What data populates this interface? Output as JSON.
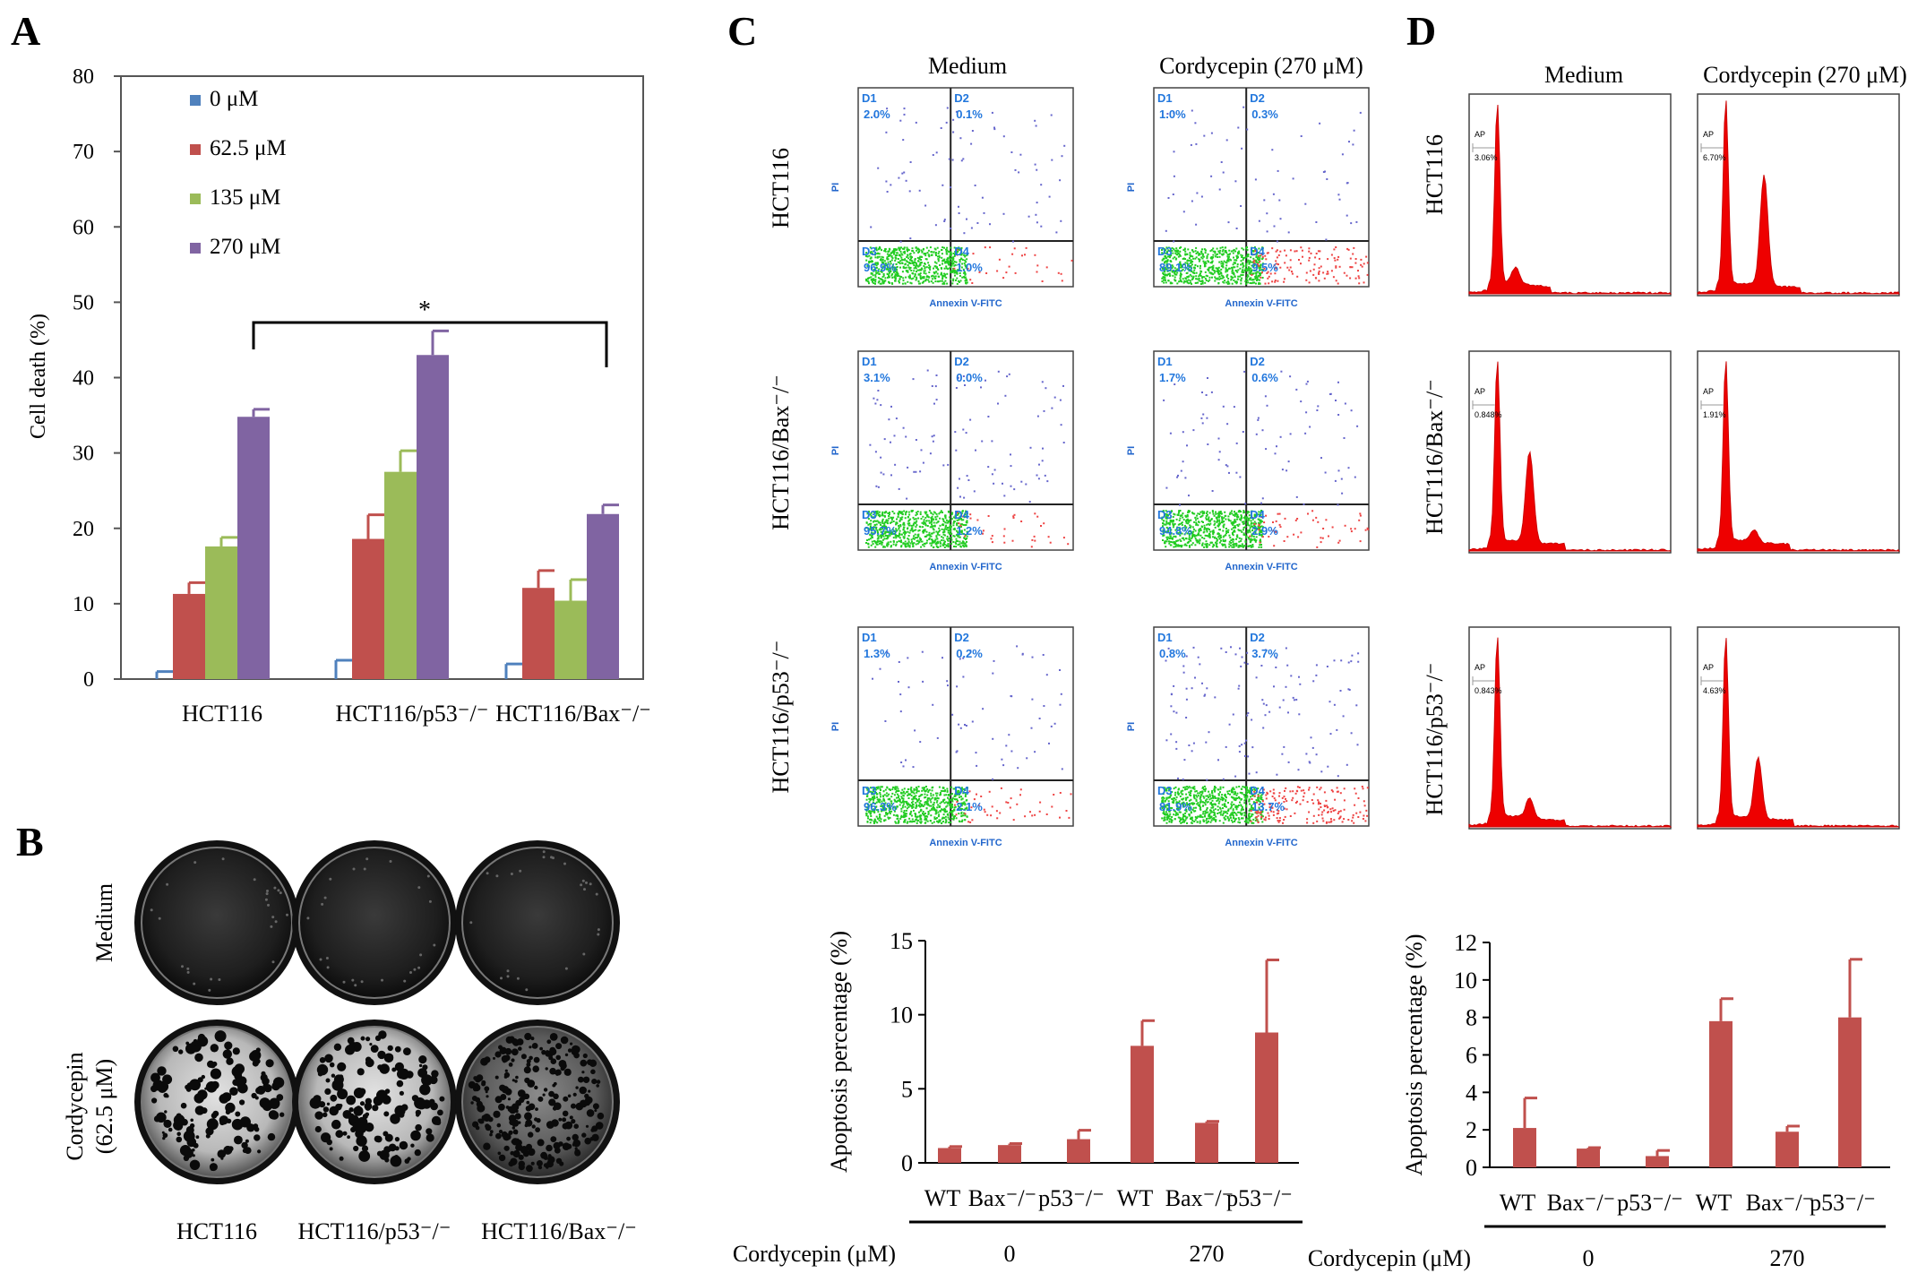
{
  "panels": {
    "A": "A",
    "B": "B",
    "C": "C",
    "D": "D"
  },
  "panel_a": {
    "ylabel": "Cell death (%)",
    "star": "*",
    "chart_data": {
      "type": "bar",
      "categories": [
        "HCT116",
        "HCT116/p53⁻/⁻",
        "HCT116/Bax⁻/⁻"
      ],
      "series": [
        {
          "name": "0 μM",
          "color": "#4f81bd",
          "values": [
            0,
            0,
            0
          ],
          "errors": [
            1,
            2.5,
            2
          ]
        },
        {
          "name": "62.5 μM",
          "color": "#c0504d",
          "values": [
            11.3,
            18.6,
            12.1
          ],
          "errors": [
            1.5,
            3.2,
            2.3
          ]
        },
        {
          "name": "135 μM",
          "color": "#9bbb59",
          "values": [
            17.6,
            27.5,
            10.4
          ],
          "errors": [
            1.2,
            2.8,
            2.8
          ]
        },
        {
          "name": "270 μM",
          "color": "#8064a2",
          "values": [
            34.8,
            43,
            21.9
          ],
          "errors": [
            1,
            3.2,
            1.2
          ]
        }
      ],
      "ylim": [
        0,
        80
      ],
      "yticks": [
        "0",
        "10",
        "20",
        "30",
        "40",
        "50",
        "60",
        "70",
        "80"
      ]
    }
  },
  "panel_b": {
    "row_labels": [
      "Medium",
      "Cordycepin",
      "(62.5 μM)"
    ],
    "col_labels": [
      "HCT116",
      "HCT116/p53⁻/⁻",
      "HCT116/Bax⁻/⁻"
    ]
  },
  "panel_c": {
    "col_headers": [
      "Medium",
      "Cordycepin (270 μM)"
    ],
    "row_labels": [
      "HCT116",
      "HCT116/Bax⁻/⁻",
      "HCT116/p53⁻/⁻"
    ],
    "xaxis_label": "Annexin V-FITC",
    "yaxis_label": "PI",
    "quadrant_names": [
      "D1",
      "D2",
      "D3",
      "D4"
    ],
    "plots": [
      {
        "D1": "2.0%",
        "D2": "0.1%",
        "D3": "96.9%",
        "D4": "1.0%"
      },
      {
        "D1": "1.0%",
        "D2": "0.3%",
        "D3": "89.1%",
        "D4": "9.5%"
      },
      {
        "D1": "3.1%",
        "D2": "0.0%",
        "D3": "95.7%",
        "D4": "1.2%"
      },
      {
        "D1": "1.7%",
        "D2": "0.6%",
        "D3": "94.8%",
        "D4": "2.9%"
      },
      {
        "D1": "1.3%",
        "D2": "0.2%",
        "D3": "96.3%",
        "D4": "2.1%"
      },
      {
        "D1": "0.8%",
        "D2": "3.7%",
        "D3": "81.9%",
        "D4": "13.7%"
      }
    ],
    "chart_data": {
      "type": "bar",
      "categories": [
        "WT",
        "Bax⁻/⁻",
        "p53⁻/⁻",
        "WT",
        "Bax⁻/⁻",
        "p53⁻/⁻"
      ],
      "values": [
        1.0,
        1.2,
        1.6,
        7.9,
        2.7,
        8.8
      ],
      "errors": [
        0.1,
        0.1,
        0.6,
        1.7,
        0.1,
        4.9
      ],
      "ylabel": "Apoptosis percentage (%)",
      "ylim": [
        0,
        15
      ],
      "yticks": [
        "0",
        "5",
        "10",
        "15"
      ],
      "group_title": "Cordycepin (μM)",
      "groups": [
        "0",
        "270"
      ]
    }
  },
  "panel_d": {
    "col_headers": [
      "Medium",
      "Cordycepin (270 μM)"
    ],
    "row_labels": [
      "HCT116",
      "HCT116/Bax⁻/⁻",
      "HCT116/p53⁻/⁻"
    ],
    "gate_label": "AP",
    "plots": [
      "3.06%",
      "6.70%",
      "0.848%",
      "1.91%",
      "0.843%",
      "4.63%"
    ],
    "chart_data": {
      "type": "bar",
      "categories": [
        "WT",
        "Bax⁻/⁻",
        "p53⁻/⁻",
        "WT",
        "Bax⁻/⁻",
        "p53⁻/⁻"
      ],
      "values": [
        2.1,
        1.0,
        0.6,
        7.8,
        1.9,
        8.0
      ],
      "errors": [
        1.6,
        0.05,
        0.3,
        1.2,
        0.3,
        3.1
      ],
      "ylabel": "Apoptosis percentage (%)",
      "ylim": [
        0,
        12
      ],
      "yticks": [
        "0",
        "2",
        "4",
        "6",
        "8",
        "10",
        "12"
      ],
      "group_title": "Cordycepin (μM)",
      "groups": [
        "0",
        "270"
      ]
    }
  }
}
